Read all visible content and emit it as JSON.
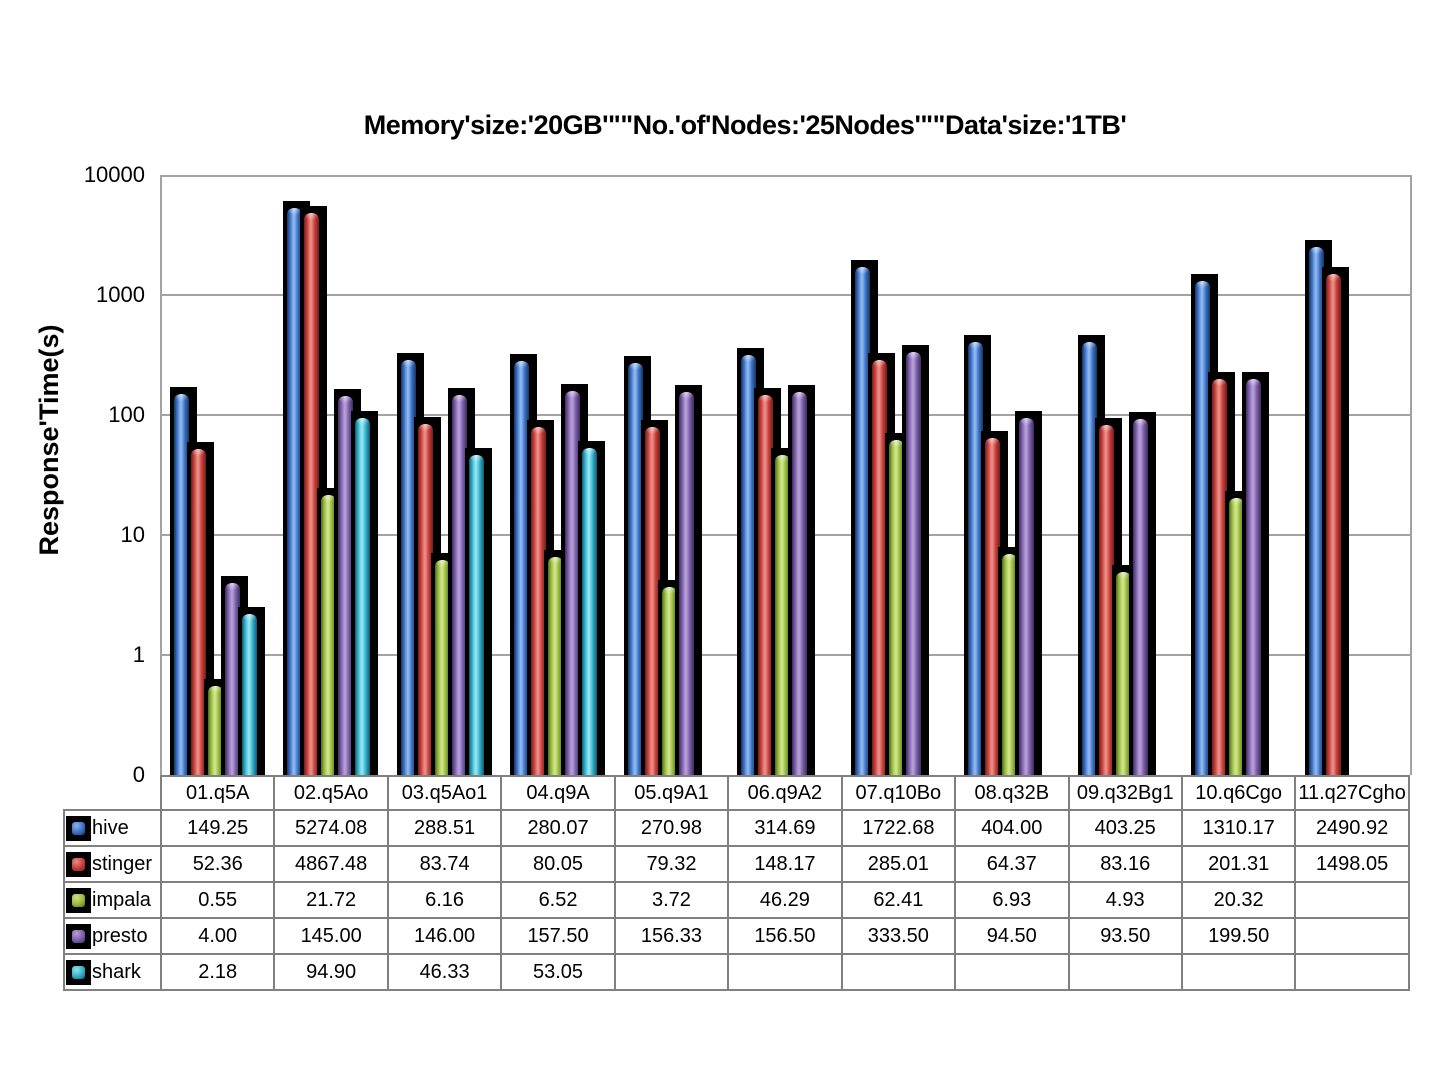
{
  "title": "Memory'size:'20GB'\"\"No.'of'Nodes:'25Nodes'\"\"Data'size:'1TB'",
  "y_axis": {
    "title": "Response'Time(s)",
    "ticks": [
      "10000",
      "1000",
      "100",
      "10",
      "1",
      "0"
    ]
  },
  "chart_data": {
    "type": "bar",
    "title": "Memory'size:'20GB'\"\"No.'of'Nodes:'25Nodes'\"\"Data'size:'1TB'",
    "xlabel": "",
    "ylabel": "Response'Time(s)",
    "y_scale": "log",
    "ylim": [
      0.1,
      10000
    ],
    "grid": true,
    "legend_position": "table-left",
    "categories": [
      "01.q5A",
      "02.q5Ao",
      "03.q5Ao1",
      "04.q9A",
      "05.q9A1",
      "06.q9A2",
      "07.q10Bo",
      "08.q32B",
      "09.q32Bg1",
      "10.q6Cgo",
      "11.q27Cgho"
    ],
    "series": [
      {
        "name": "hive",
        "values": [
          149.25,
          5274.08,
          288.51,
          280.07,
          270.98,
          314.69,
          1722.68,
          404.0,
          403.25,
          1310.17,
          2490.92
        ],
        "colors": {
          "dark": "#16375f",
          "mid": "#3b6fc6",
          "light": "#8ab6ec"
        }
      },
      {
        "name": "stinger",
        "values": [
          52.36,
          4867.48,
          83.74,
          80.05,
          79.32,
          148.17,
          285.01,
          64.37,
          83.16,
          201.31,
          1498.05
        ],
        "colors": {
          "dark": "#741e1c",
          "mid": "#c43d39",
          "light": "#ec8a84"
        }
      },
      {
        "name": "impala",
        "values": [
          0.55,
          21.72,
          6.16,
          6.52,
          3.72,
          46.29,
          62.41,
          6.93,
          4.93,
          20.32,
          null
        ],
        "colors": {
          "dark": "#4f6a1b",
          "mid": "#94b83d",
          "light": "#cfe387"
        }
      },
      {
        "name": "presto",
        "values": [
          4.0,
          145.0,
          146.0,
          157.5,
          156.33,
          156.5,
          333.5,
          94.5,
          93.5,
          199.5,
          null
        ],
        "colors": {
          "dark": "#3f2d5c",
          "mid": "#7a5da8",
          "light": "#b49cd6"
        }
      },
      {
        "name": "shark",
        "values": [
          2.18,
          94.9,
          46.33,
          53.05,
          null,
          null,
          null,
          null,
          null,
          null,
          null
        ],
        "colors": {
          "dark": "#125a6e",
          "mid": "#33afc9",
          "light": "#90e4f2"
        }
      }
    ]
  },
  "style_colors": {
    "gridline": "#a3a3a3",
    "table_border": "#808080",
    "bar_frame": "#000000",
    "background": "#ffffff"
  }
}
